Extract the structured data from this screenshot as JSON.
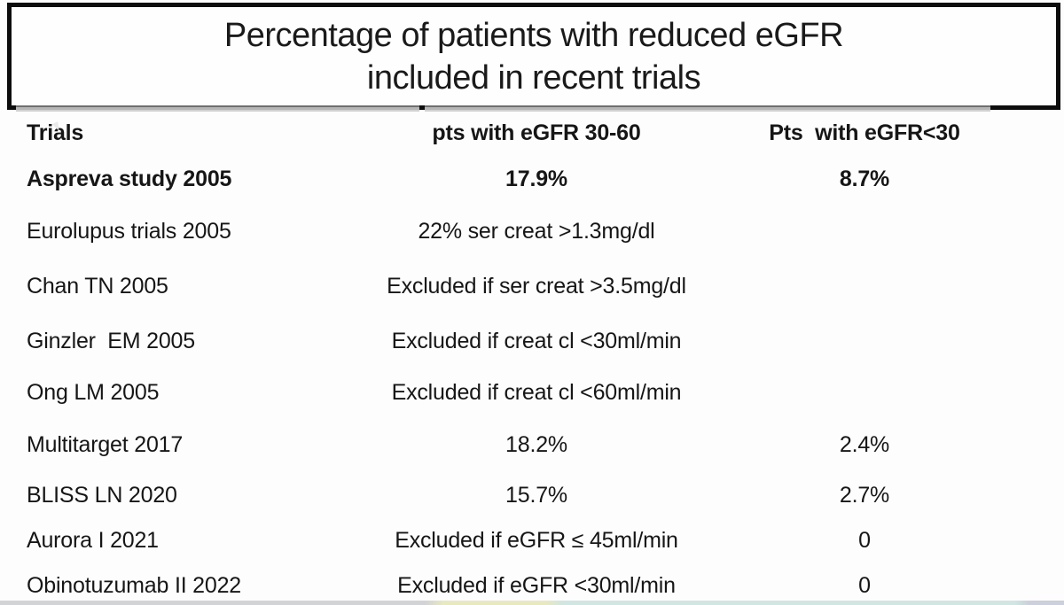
{
  "slide": {
    "title": {
      "line1": "Percentage of patients with reduced eGFR",
      "line2": "included in recent trials"
    }
  },
  "table": {
    "headers": {
      "trials": "Trials",
      "egfr_30_60": "pts with eGFR 30-60",
      "egfr_lt_30": "Pts  with eGFR<30"
    },
    "rows": [
      {
        "trial": "Aspreva study 2005",
        "egfr_30_60": "17.9%",
        "egfr_lt_30": "8.7%"
      },
      {
        "trial": "Eurolupus trials 2005",
        "egfr_30_60": "22% ser creat >1.3mg/dl",
        "egfr_lt_30": ""
      },
      {
        "trial": "Chan TN 2005",
        "egfr_30_60": "Excluded if ser creat >3.5mg/dl",
        "egfr_lt_30": ""
      },
      {
        "trial": "Ginzler  EM 2005",
        "egfr_30_60": "Excluded if creat cl <30ml/min",
        "egfr_lt_30": ""
      },
      {
        "trial": "Ong LM 2005",
        "egfr_30_60": "Excluded if creat cl <60ml/min",
        "egfr_lt_30": ""
      },
      {
        "trial": "Multitarget 2017",
        "egfr_30_60": "18.2%",
        "egfr_lt_30": "2.4%"
      },
      {
        "trial": "BLISS LN 2020",
        "egfr_30_60": "15.7%",
        "egfr_lt_30": "2.7%"
      },
      {
        "trial": "Aurora I 2021",
        "egfr_30_60": "Excluded if eGFR ≤ 45ml/min",
        "egfr_lt_30": "0"
      },
      {
        "trial": "Obinotuzumab II 2022",
        "egfr_30_60": "Excluded if eGFR <30ml/min",
        "egfr_lt_30": "0"
      }
    ]
  },
  "colors": {
    "text": "#161616",
    "title_border": "#0d0d0d",
    "divider_gray": "#b5b5b5",
    "strip_gray": "#d2d3d6",
    "strip_yellow": "#e9e9c0",
    "strip_teal": "#cfe6e2",
    "strip_lavender": "#ccd0dc"
  }
}
